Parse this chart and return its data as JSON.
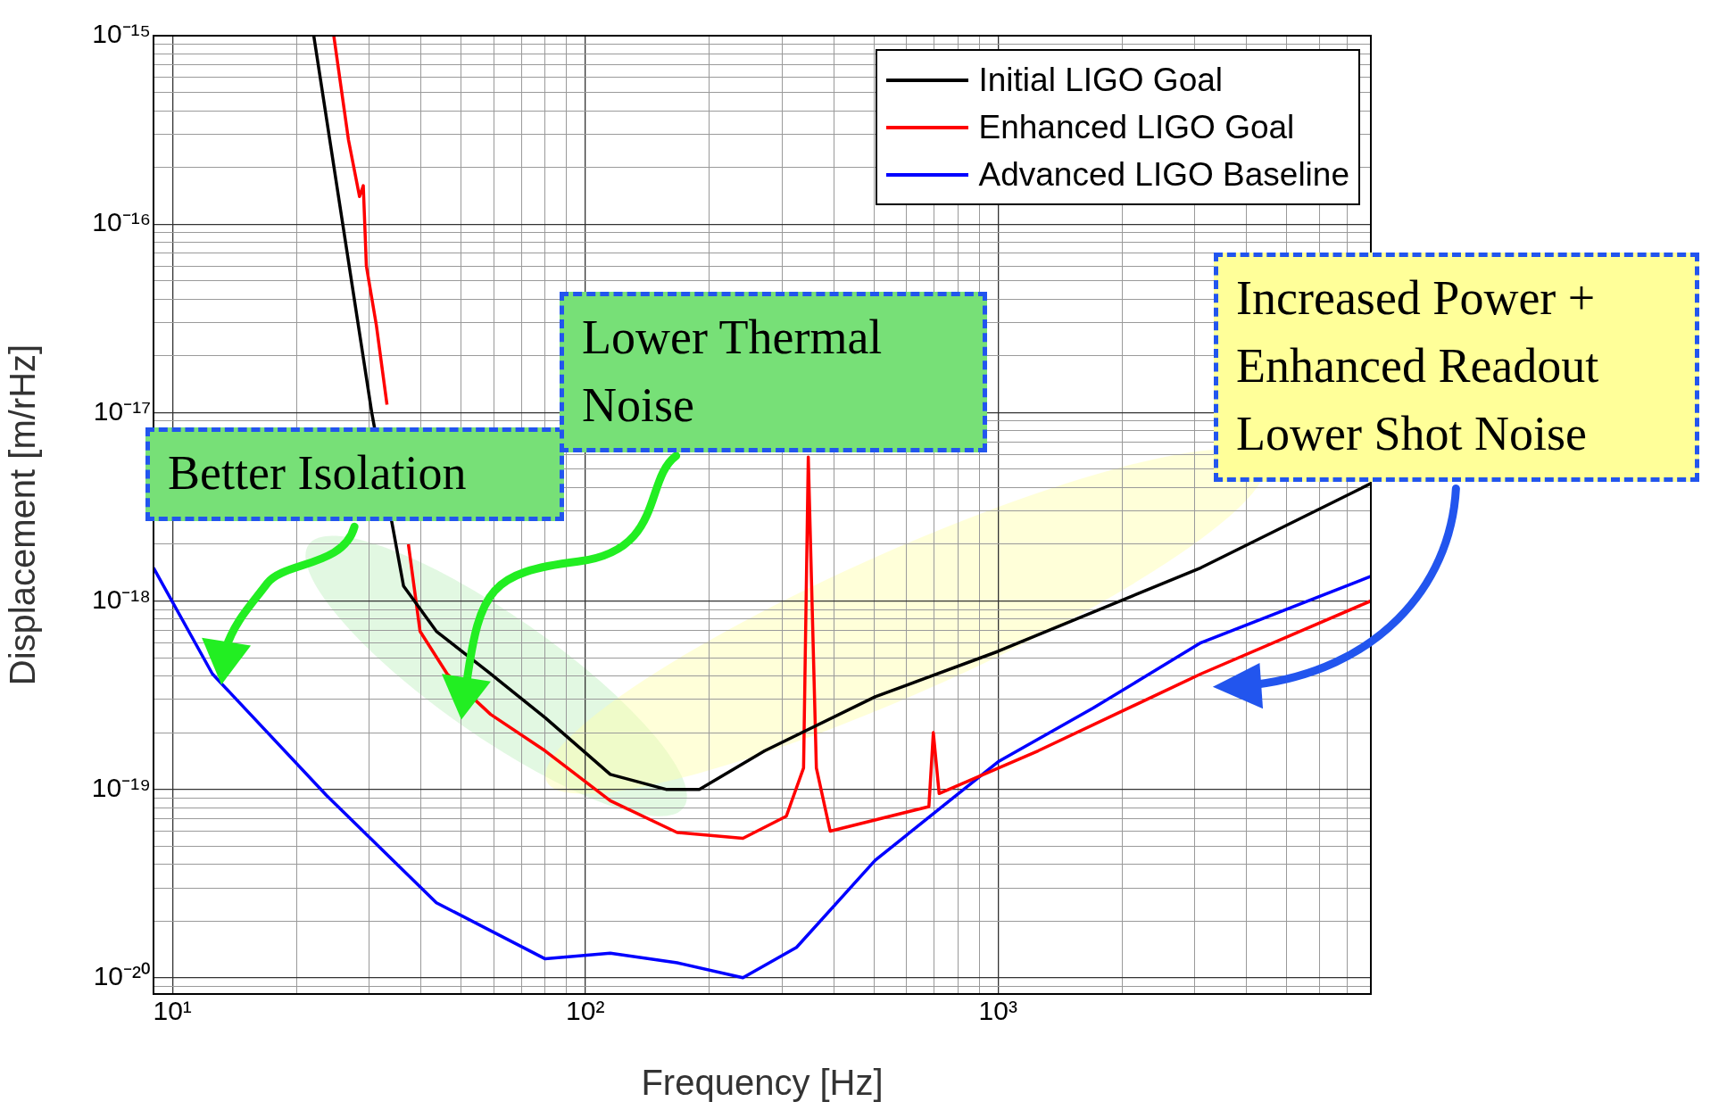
{
  "chart_data": {
    "type": "line",
    "xlabel": "Frequency [Hz]",
    "ylabel": "Displacement [m/rHz]",
    "log": "xy",
    "grid": true,
    "legend": "top right",
    "line_style": "solid",
    "marker": "none",
    "xlim": [
      9,
      8000
    ],
    "ylim": [
      8.2e-21,
      1e-15
    ],
    "xticks": [
      {
        "value": 10,
        "label": "10¹"
      },
      {
        "value": 20,
        "label": null
      },
      {
        "value": 30,
        "label": null
      },
      {
        "value": 40,
        "label": null
      },
      {
        "value": 50,
        "label": null
      },
      {
        "value": 60,
        "label": null
      },
      {
        "value": 70,
        "label": null
      },
      {
        "value": 80,
        "label": null
      },
      {
        "value": 90,
        "label": null
      },
      {
        "value": 100,
        "label": "10²"
      },
      {
        "value": 200,
        "label": null
      },
      {
        "value": 300,
        "label": null
      },
      {
        "value": 400,
        "label": null
      },
      {
        "value": 500,
        "label": null
      },
      {
        "value": 600,
        "label": null
      },
      {
        "value": 700,
        "label": null
      },
      {
        "value": 800,
        "label": null
      },
      {
        "value": 900,
        "label": null
      },
      {
        "value": 1000,
        "label": "10³"
      },
      {
        "value": 2000,
        "label": null
      },
      {
        "value": 3000,
        "label": null
      },
      {
        "value": 4000,
        "label": null
      },
      {
        "value": 5000,
        "label": null
      },
      {
        "value": 6000,
        "label": null
      },
      {
        "value": 7000,
        "label": null
      },
      {
        "value": 8000,
        "label": null
      }
    ],
    "yticks": [
      {
        "value": 9e-21,
        "label": null
      },
      {
        "value": 1e-20,
        "label": "10⁻²⁰"
      },
      {
        "value": 2e-20,
        "label": null
      },
      {
        "value": 3e-20,
        "label": null
      },
      {
        "value": 4e-20,
        "label": null
      },
      {
        "value": 5e-20,
        "label": null
      },
      {
        "value": 6e-20,
        "label": null
      },
      {
        "value": 7e-20,
        "label": null
      },
      {
        "value": 8e-20,
        "label": null
      },
      {
        "value": 9e-20,
        "label": null
      },
      {
        "value": 1e-19,
        "label": "10⁻¹⁹"
      },
      {
        "value": 2e-19,
        "label": null
      },
      {
        "value": 3e-19,
        "label": null
      },
      {
        "value": 4e-19,
        "label": null
      },
      {
        "value": 5e-19,
        "label": null
      },
      {
        "value": 6e-19,
        "label": null
      },
      {
        "value": 7e-19,
        "label": null
      },
      {
        "value": 8e-19,
        "label": null
      },
      {
        "value": 9e-19,
        "label": null
      },
      {
        "value": 1e-18,
        "label": "10⁻¹⁸"
      },
      {
        "value": 2e-18,
        "label": null
      },
      {
        "value": 3e-18,
        "label": null
      },
      {
        "value": 4e-18,
        "label": null
      },
      {
        "value": 5e-18,
        "label": null
      },
      {
        "value": 6e-18,
        "label": null
      },
      {
        "value": 7e-18,
        "label": null
      },
      {
        "value": 8e-18,
        "label": null
      },
      {
        "value": 9e-18,
        "label": null
      },
      {
        "value": 1e-17,
        "label": "10⁻¹⁷"
      },
      {
        "value": 2e-17,
        "label": null
      },
      {
        "value": 3e-17,
        "label": null
      },
      {
        "value": 4e-17,
        "label": null
      },
      {
        "value": 5e-17,
        "label": null
      },
      {
        "value": 6e-17,
        "label": null
      },
      {
        "value": 7e-17,
        "label": null
      },
      {
        "value": 8e-17,
        "label": null
      },
      {
        "value": 9e-17,
        "label": null
      },
      {
        "value": 1e-16,
        "label": "10⁻¹⁶"
      },
      {
        "value": 2e-16,
        "label": null
      },
      {
        "value": 3e-16,
        "label": null
      },
      {
        "value": 4e-16,
        "label": null
      },
      {
        "value": 5e-16,
        "label": null
      },
      {
        "value": 6e-16,
        "label": null
      },
      {
        "value": 7e-16,
        "label": null
      },
      {
        "value": 8e-16,
        "label": null
      },
      {
        "value": 9e-16,
        "label": null
      },
      {
        "value": 1e-15,
        "label": "10⁻¹⁵"
      }
    ],
    "series": [
      {
        "name": "Initial LIGO Goal",
        "color": "#000000",
        "x": [
          22,
          30.4,
          36.3,
          43.6,
          59,
          80,
          115,
          157,
          189,
          272,
          504,
          1000,
          3100,
          8000
        ],
        "values": [
          1e-15,
          1e-17,
          1.2e-18,
          6.9e-19,
          4.1e-19,
          2.4e-19,
          1.2e-19,
          1e-19,
          1e-19,
          1.6e-19,
          3.1e-19,
          5.4e-19,
          1.5e-18,
          4.2e-18
        ]
      },
      {
        "name": "Enhanced LIGO Goal",
        "color": "#ff0000",
        "x": [
          24.6,
          26.7,
          28.4,
          29,
          29.5,
          31.2,
          33.1,
          34.1,
          37.3,
          39.8,
          46.3,
          59,
          80,
          115,
          167,
          241,
          307,
          338,
          347,
          363,
          392,
          680,
          697,
          720,
          1250,
          3100,
          8000
        ],
        "values": [
          1e-15,
          2.8e-16,
          1.4e-16,
          1.6e-16,
          6e-17,
          2.9e-17,
          1.1e-17,
          null,
          2e-18,
          6.9e-19,
          4.1e-19,
          2.5e-19,
          1.6e-19,
          8.7e-20,
          5.9e-20,
          5.5e-20,
          7.2e-20,
          1.3e-19,
          5.8e-18,
          1.3e-19,
          6e-20,
          8.1e-20,
          2e-19,
          9.5e-20,
          1.6e-19,
          4.1e-19,
          1e-18
        ]
      },
      {
        "name": "Advanced LIGO Baseline",
        "color": "#0000ff",
        "x": [
          9,
          12.5,
          23.6,
          43.6,
          80,
          115,
          167,
          241,
          325,
          504,
          1000,
          1700,
          3100,
          8000
        ],
        "values": [
          1.5e-18,
          4.1e-19,
          9.3e-20,
          2.5e-20,
          1.26e-20,
          1.35e-20,
          1.2e-20,
          1e-20,
          1.45e-20,
          4.2e-20,
          1.4e-19,
          2.7e-19,
          6e-19,
          1.35e-18
        ]
      }
    ],
    "annotations": [
      "Better Isolation",
      "Lower Thermal\nNoise",
      "Increased Power +\nEnhanced Readout\nLower Shot Noise"
    ]
  }
}
